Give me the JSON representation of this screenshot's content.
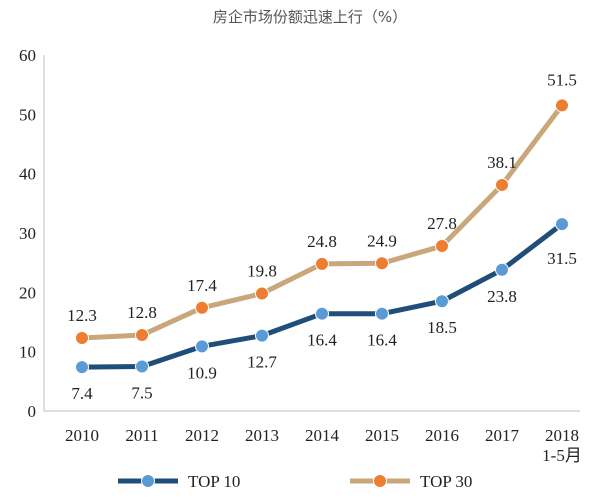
{
  "chart_data": {
    "type": "line",
    "title": "房企市场份额迅速上行（%）",
    "categories": [
      "2010",
      "2011",
      "2012",
      "2013",
      "2014",
      "2015",
      "2016",
      "2017",
      "2018\n1-5月"
    ],
    "ylim": [
      0,
      60
    ],
    "yticks": [
      0,
      10,
      20,
      30,
      40,
      50,
      60
    ],
    "xlabel": "",
    "ylabel": "",
    "legend_position": "bottom",
    "grid": false,
    "series": [
      {
        "name": "TOP 10",
        "values": [
          7.4,
          7.5,
          10.9,
          12.7,
          16.4,
          16.4,
          18.5,
          23.8,
          31.5
        ],
        "labels": [
          "7.4",
          "7.5",
          "10.9",
          "12.7",
          "16.4",
          "16.4",
          "18.5",
          "23.8",
          "31.5"
        ],
        "line_color": "#1f4e79",
        "marker_color": "#5b9bd5"
      },
      {
        "name": "TOP 30",
        "values": [
          12.3,
          12.8,
          17.4,
          19.8,
          24.8,
          24.9,
          27.8,
          38.1,
          51.5
        ],
        "labels": [
          "12.3",
          "12.8",
          "17.4",
          "19.8",
          "24.8",
          "24.9",
          "27.8",
          "38.1",
          "51.5"
        ],
        "line_color": "#c9a77a",
        "marker_color": "#ed7d31"
      }
    ]
  }
}
